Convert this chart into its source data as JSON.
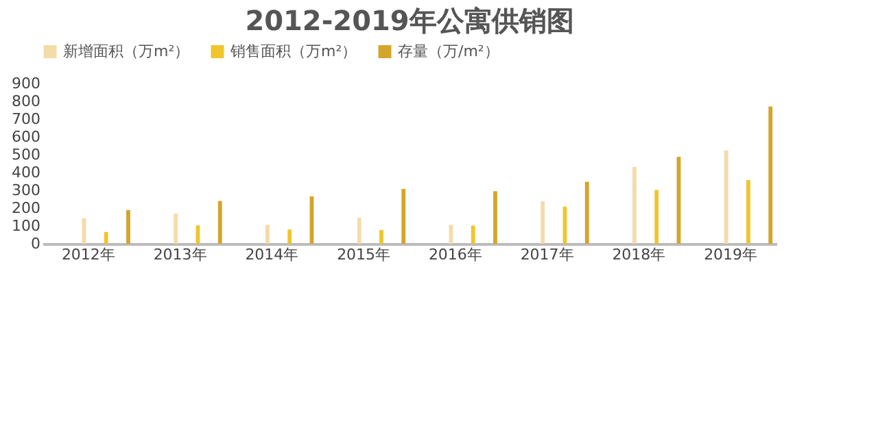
{
  "chart_data": {
    "type": "bar",
    "title": "2012-2019年公寓供销图",
    "categories": [
      "2012年",
      "2013年",
      "2014年",
      "2015年",
      "2016年",
      "2017年",
      "2018年",
      "2019年"
    ],
    "series": [
      {
        "name": "新增面积（万m²）",
        "color": "#f3dcaa",
        "values": [
          143,
          169,
          106,
          146,
          106,
          238,
          431,
          525
        ]
      },
      {
        "name": "销售面积（万m²）",
        "color": "#f0c52c",
        "values": [
          66,
          103,
          80,
          77,
          102,
          208,
          302,
          358
        ]
      },
      {
        "name": "存量（万/m²）",
        "color": "#d4a52a",
        "values": [
          189,
          240,
          266,
          308,
          295,
          348,
          488,
          771
        ]
      }
    ],
    "ylim": [
      0,
      900
    ],
    "yticks": [
      0,
      100,
      200,
      300,
      400,
      500,
      600,
      700,
      800,
      900
    ],
    "grid": false,
    "legend": "top"
  }
}
